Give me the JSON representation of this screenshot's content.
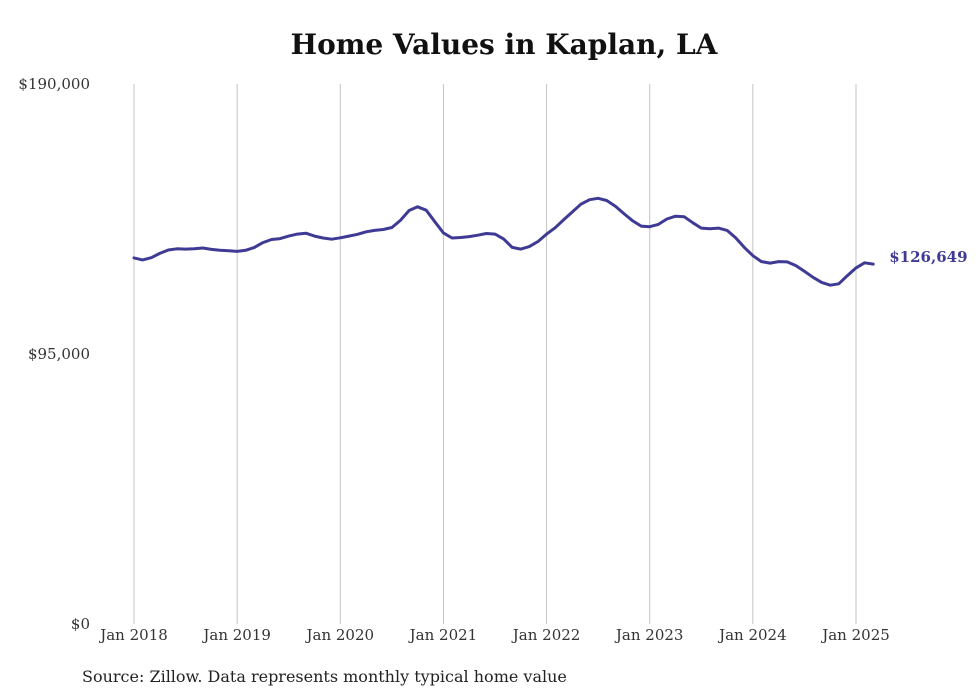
{
  "chart_data": {
    "type": "line",
    "title": "Home Values in Kaplan, LA",
    "source": "Source: Zillow. Data represents monthly typical home value",
    "ylim": [
      0,
      190000
    ],
    "y_ticks": [
      {
        "value": 190000,
        "label": "$190,000"
      },
      {
        "value": 95000,
        "label": "$95,000"
      },
      {
        "value": 0,
        "label": "$0"
      }
    ],
    "x_ticks": [
      {
        "value": 2018.0,
        "label": "Jan 2018"
      },
      {
        "value": 2019.0,
        "label": "Jan 2019"
      },
      {
        "value": 2020.0,
        "label": "Jan 2020"
      },
      {
        "value": 2021.0,
        "label": "Jan 2021"
      },
      {
        "value": 2022.0,
        "label": "Jan 2022"
      },
      {
        "value": 2023.0,
        "label": "Jan 2023"
      },
      {
        "value": 2024.0,
        "label": "Jan 2024"
      },
      {
        "value": 2025.0,
        "label": "Jan 2025"
      }
    ],
    "grid": "vertical",
    "line_color": "#3f3a94",
    "end_label": "$126,649",
    "series": [
      {
        "x": [
          2018.0,
          2018.083,
          2018.167,
          2018.25,
          2018.333,
          2018.417,
          2018.5,
          2018.583,
          2018.667,
          2018.75,
          2018.833,
          2018.917,
          2019.0,
          2019.083,
          2019.167,
          2019.25,
          2019.333,
          2019.417,
          2019.5,
          2019.583,
          2019.667,
          2019.75,
          2019.833,
          2019.917,
          2020.0,
          2020.083,
          2020.167,
          2020.25,
          2020.333,
          2020.417,
          2020.5,
          2020.583,
          2020.667,
          2020.75,
          2020.833,
          2020.917,
          2021.0,
          2021.083,
          2021.167,
          2021.25,
          2021.333,
          2021.417,
          2021.5,
          2021.583,
          2021.667,
          2021.75,
          2021.833,
          2021.917,
          2022.0,
          2022.083,
          2022.167,
          2022.25,
          2022.333,
          2022.417,
          2022.5,
          2022.583,
          2022.667,
          2022.75,
          2022.833,
          2022.917,
          2023.0,
          2023.083,
          2023.167,
          2023.25,
          2023.333,
          2023.417,
          2023.5,
          2023.583,
          2023.667,
          2023.75,
          2023.833,
          2023.917,
          2024.0,
          2024.083,
          2024.167,
          2024.25,
          2024.333,
          2024.417,
          2024.5,
          2024.583,
          2024.667,
          2024.75,
          2024.833,
          2024.917,
          2025.0,
          2025.083,
          2025.167
        ],
        "y": [
          128800,
          128100,
          128900,
          130400,
          131600,
          132000,
          131900,
          132000,
          132300,
          131800,
          131500,
          131300,
          131100,
          131500,
          132500,
          134200,
          135300,
          135600,
          136500,
          137200,
          137500,
          136500,
          135800,
          135400,
          135900,
          136500,
          137100,
          138000,
          138500,
          138800,
          139500,
          142000,
          145500,
          146800,
          145600,
          141500,
          137600,
          135800,
          136000,
          136300,
          136800,
          137400,
          137200,
          135500,
          132500,
          131900,
          132800,
          134600,
          137200,
          139400,
          142300,
          145000,
          147700,
          149300,
          149800,
          149000,
          147000,
          144400,
          141900,
          140000,
          139800,
          140600,
          142500,
          143500,
          143300,
          141200,
          139300,
          139100,
          139300,
          138500,
          135900,
          132500,
          129600,
          127500,
          127000,
          127500,
          127400,
          126100,
          124100,
          122000,
          120200,
          119200,
          119700,
          122600,
          125300,
          127100,
          126649
        ]
      }
    ]
  }
}
